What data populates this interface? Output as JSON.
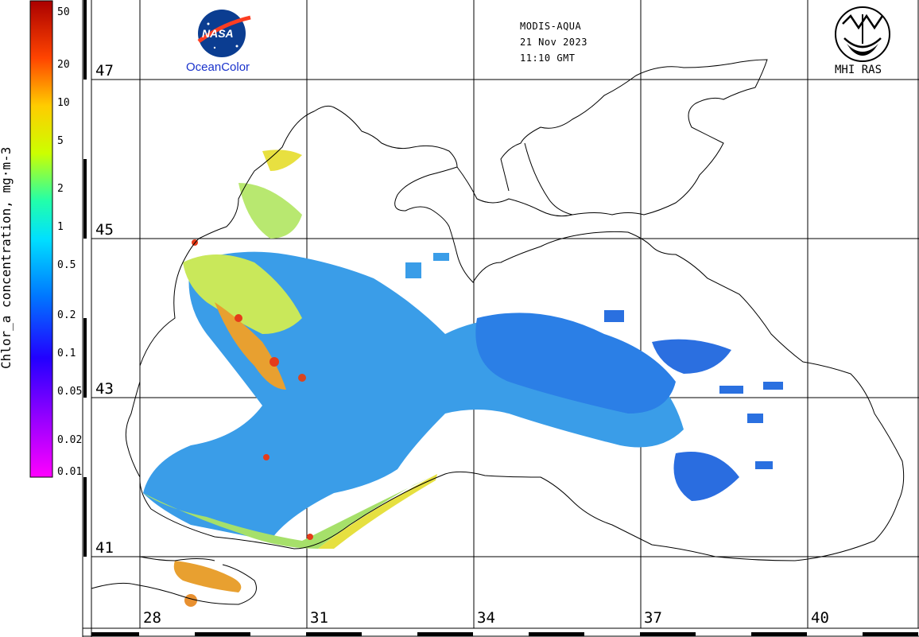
{
  "product": {
    "sensor": "MODIS-AQUA",
    "date": "21 Nov 2023",
    "time": "11:10 GMT"
  },
  "logos": {
    "nasa_text": "NASA",
    "oceancolor_text": "OceanColor",
    "mhi_text": "MHI RAS"
  },
  "colorbar": {
    "title": "Chlor_a concentration, mg·m-3",
    "scale": "log",
    "range": [
      0.01,
      50
    ],
    "ticks": [
      "50",
      "20",
      "10",
      "5",
      "2",
      "1",
      "0.5",
      "0.2",
      "0.1",
      "0.05",
      "0.02",
      "0.01"
    ],
    "colors": [
      "#ff00ff",
      "#8800ff",
      "#0000ff",
      "#0088ff",
      "#00ddff",
      "#33ff99",
      "#ffff00",
      "#ff9900",
      "#ff0000",
      "#880000"
    ]
  },
  "grid": {
    "latitudes": [
      "47",
      "45",
      "43",
      "41"
    ],
    "longitudes": [
      "28",
      "31",
      "34",
      "37",
      "40"
    ]
  },
  "colors": {
    "coast": "#000000",
    "low_chl": "#1e90ff",
    "mid_chl": "#7fd8a0",
    "high_chl": "#e8e43a",
    "very_high": "#e53b1a"
  }
}
